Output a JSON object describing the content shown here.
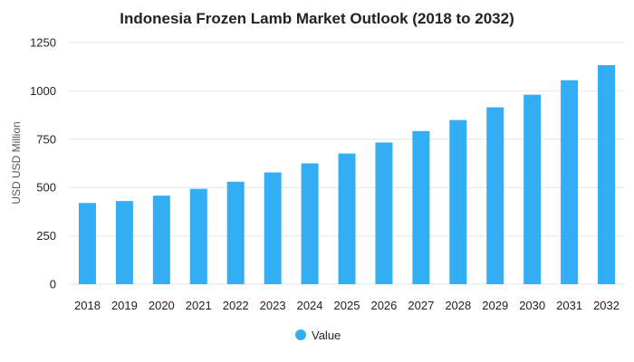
{
  "chart_data": {
    "type": "bar",
    "title": "Indonesia Frozen Lamb Market Outlook (2018 to 2032)",
    "xlabel": "",
    "ylabel": "USD USD Million",
    "categories": [
      "2018",
      "2019",
      "2020",
      "2021",
      "2022",
      "2023",
      "2024",
      "2025",
      "2026",
      "2027",
      "2028",
      "2029",
      "2030",
      "2031",
      "2032"
    ],
    "series": [
      {
        "name": "Value",
        "values": [
          420,
          430,
          458,
          493,
          530,
          578,
          625,
          676,
          733,
          792,
          849,
          915,
          980,
          1055,
          1133
        ]
      }
    ],
    "ylim": [
      0,
      1250
    ],
    "yticks": [
      0,
      250,
      500,
      750,
      1000,
      1250
    ],
    "grid": true,
    "legend_position": "bottom-center",
    "colors": {
      "bar": "#33aef5"
    }
  }
}
